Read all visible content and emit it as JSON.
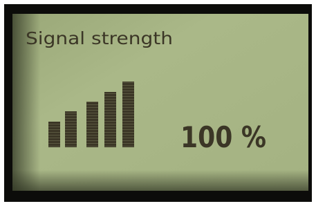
{
  "display": {
    "title": "Signal strength",
    "reading": "100 %"
  }
}
